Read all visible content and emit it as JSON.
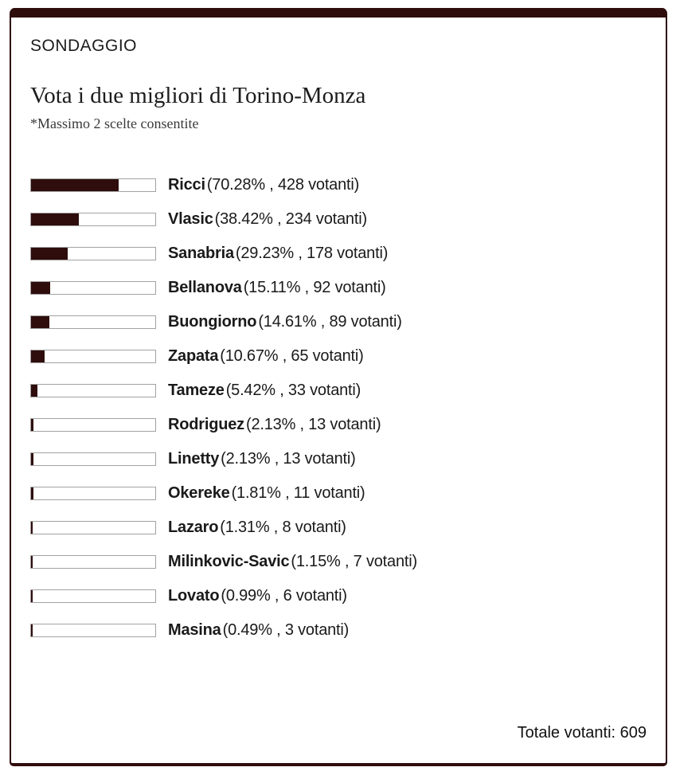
{
  "colors": {
    "accent": "#2e0d0c",
    "bar_track_border": "#a2a2a2",
    "bar_track_background": "#ffffff",
    "text": "#1a1a1a"
  },
  "header": {
    "kicker": "SONDAGGIO"
  },
  "poll": {
    "title": "Vota i due migliori di Torino-Monza",
    "note": "*Massimo 2 scelte consentite",
    "total_label": "Totale votanti: 609",
    "total_votes": 609,
    "options": [
      {
        "name": "Ricci",
        "detail": "(70.28% , 428 votanti)",
        "percent": 70.28,
        "votes": 428
      },
      {
        "name": "Vlasic",
        "detail": "(38.42% , 234 votanti)",
        "percent": 38.42,
        "votes": 234
      },
      {
        "name": "Sanabria",
        "detail": "(29.23% , 178 votanti)",
        "percent": 29.23,
        "votes": 178
      },
      {
        "name": "Bellanova",
        "detail": "(15.11% , 92 votanti)",
        "percent": 15.11,
        "votes": 92
      },
      {
        "name": "Buongiorno",
        "detail": "(14.61% , 89 votanti)",
        "percent": 14.61,
        "votes": 89
      },
      {
        "name": "Zapata",
        "detail": "(10.67% , 65 votanti)",
        "percent": 10.67,
        "votes": 65
      },
      {
        "name": "Tameze",
        "detail": "(5.42% , 33 votanti)",
        "percent": 5.42,
        "votes": 33
      },
      {
        "name": "Rodriguez",
        "detail": "(2.13% , 13 votanti)",
        "percent": 2.13,
        "votes": 13
      },
      {
        "name": "Linetty",
        "detail": "(2.13% , 13 votanti)",
        "percent": 2.13,
        "votes": 13
      },
      {
        "name": "Okereke",
        "detail": "(1.81% , 11 votanti)",
        "percent": 1.81,
        "votes": 11
      },
      {
        "name": "Lazaro",
        "detail": "(1.31% , 8 votanti)",
        "percent": 1.31,
        "votes": 8
      },
      {
        "name": "Milinkovic-Savic",
        "detail": "(1.15% , 7 votanti)",
        "percent": 1.15,
        "votes": 7
      },
      {
        "name": "Lovato",
        "detail": "(0.99% , 6 votanti)",
        "percent": 0.99,
        "votes": 6
      },
      {
        "name": "Masina",
        "detail": "(0.49% , 3 votanti)",
        "percent": 0.49,
        "votes": 3
      }
    ]
  },
  "chart_data": {
    "type": "bar",
    "orientation": "horizontal",
    "title": "Vota i due migliori di Torino-Monza",
    "subtitle": "*Massimo 2 scelte consentite",
    "kicker": "SONDAGGIO",
    "categories": [
      "Ricci",
      "Vlasic",
      "Sanabria",
      "Bellanova",
      "Buongiorno",
      "Zapata",
      "Tameze",
      "Rodriguez",
      "Linetty",
      "Okereke",
      "Lazaro",
      "Milinkovic-Savic",
      "Lovato",
      "Masina"
    ],
    "series": [
      {
        "name": "percent",
        "values": [
          70.28,
          38.42,
          29.23,
          15.11,
          14.61,
          10.67,
          5.42,
          2.13,
          2.13,
          1.81,
          1.31,
          1.15,
          0.99,
          0.49
        ]
      },
      {
        "name": "votanti",
        "values": [
          428,
          234,
          178,
          92,
          89,
          65,
          33,
          13,
          13,
          11,
          8,
          7,
          6,
          3
        ]
      }
    ],
    "xlim": [
      0,
      100
    ],
    "grid": false,
    "legend": false,
    "bar_color": "#2e0d0c",
    "annotation": "Totale votanti: 609"
  }
}
